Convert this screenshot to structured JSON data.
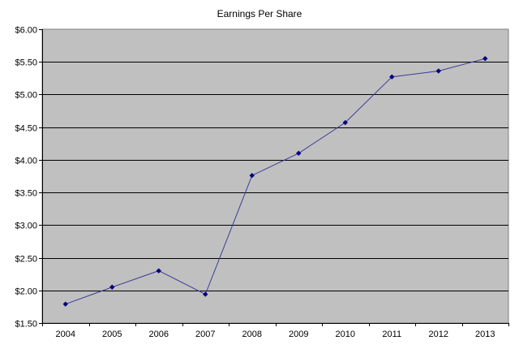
{
  "chart_data": {
    "type": "line",
    "title": "Earnings Per Share",
    "xlabel": "",
    "ylabel": "",
    "categories": [
      "2004",
      "2005",
      "2006",
      "2007",
      "2008",
      "2009",
      "2010",
      "2011",
      "2012",
      "2013"
    ],
    "series": [
      {
        "values": [
          1.79,
          2.05,
          2.3,
          1.94,
          3.76,
          4.1,
          4.57,
          5.27,
          5.36,
          5.55
        ]
      }
    ],
    "ylim": [
      1.5,
      6.0
    ],
    "y_ticks": [
      "$1.50",
      "$2.00",
      "$2.50",
      "$3.00",
      "$3.50",
      "$4.00",
      "$4.50",
      "$5.00",
      "$5.50",
      "$6.00"
    ],
    "grid": true,
    "legend": "none",
    "colors": {
      "plot_background": "#c0c0c0",
      "line": "#3a3a9a",
      "marker": "#000080",
      "grid": "#000000"
    }
  }
}
